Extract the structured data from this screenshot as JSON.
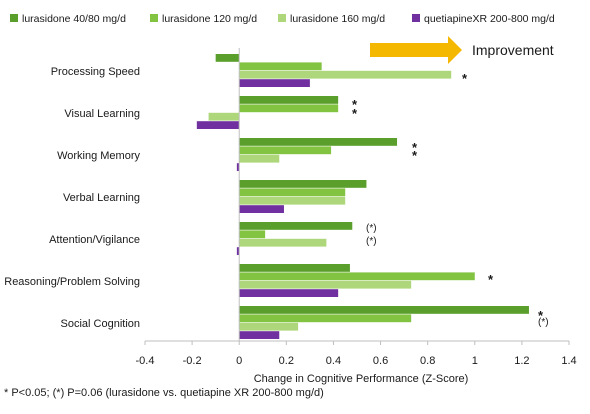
{
  "chart_data": {
    "type": "bar",
    "orientation": "horizontal",
    "categories": [
      "Processing Speed",
      "Visual Learning",
      "Working Memory",
      "Verbal Learning",
      "Attention/Vigilance",
      "Reasoning/Problem Solving",
      "Social Cognition"
    ],
    "series": [
      {
        "name": "lurasidone 40/80 mg/d",
        "color": "#5a9e2b",
        "values": [
          -0.1,
          0.42,
          0.67,
          0.54,
          0.48,
          0.47,
          1.23
        ]
      },
      {
        "name": "lurasidone 120 mg/d",
        "color": "#82c341",
        "values": [
          0.35,
          0.42,
          0.39,
          0.45,
          0.11,
          1.0,
          0.73
        ]
      },
      {
        "name": "lurasidone 160 mg/d",
        "color": "#aed67b",
        "values": [
          0.9,
          -0.13,
          0.17,
          0.45,
          0.37,
          0.73,
          0.25
        ]
      },
      {
        "name": "quetiapineXR 200-800 mg/d",
        "color": "#7030a0",
        "values": [
          0.3,
          -0.18,
          -0.01,
          0.19,
          -0.01,
          0.42,
          0.17
        ]
      }
    ],
    "significance": [
      {
        "category": "Processing Speed",
        "marks": [
          "*"
        ]
      },
      {
        "category": "Visual Learning",
        "marks": [
          "*",
          "*"
        ]
      },
      {
        "category": "Working Memory",
        "marks": [
          "*",
          "*"
        ]
      },
      {
        "category": "Attention/Vigilance",
        "marks": [
          "(*)",
          "(*)"
        ]
      },
      {
        "category": "Reasoning/Problem Solving",
        "marks": [
          "*"
        ]
      },
      {
        "category": "Social Cognition",
        "marks": [
          "*",
          "(*)"
        ]
      }
    ],
    "xlim": [
      -0.4,
      1.4
    ],
    "xticks": [
      -0.4,
      -0.2,
      0,
      0.2,
      0.4,
      0.6,
      0.8,
      1,
      1.2,
      1.4
    ],
    "xtick_labels": [
      "-0.4",
      "-0.2",
      "0",
      "0.2",
      "0.4",
      "0.6",
      "0.8",
      "1",
      "1.2",
      "1.4"
    ],
    "xlabel": "Change in Cognitive Performance (Z-Score)",
    "ylabel": "",
    "title": "",
    "grid": false,
    "legend_position": "top",
    "annotation": {
      "text": "Improvement",
      "arrow_color": "#f5b800"
    }
  },
  "footnote": "* P<0.05; (*) P=0.06  (lurasidone vs. quetiapine XR 200-800 mg/d)"
}
